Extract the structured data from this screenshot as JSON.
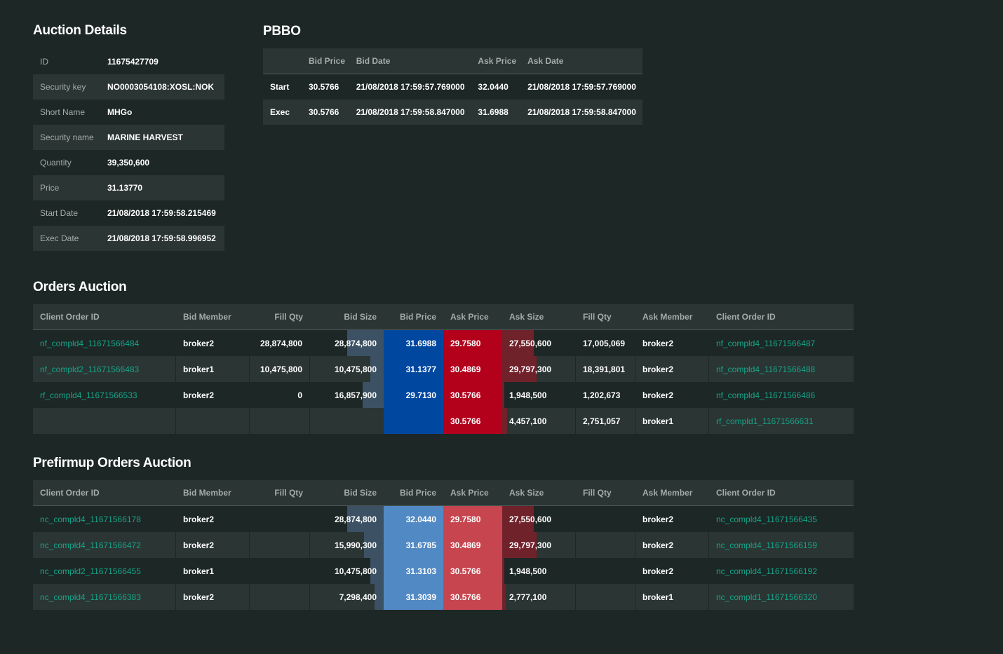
{
  "auction_details": {
    "title": "Auction Details",
    "rows": [
      {
        "label": "ID",
        "value": "11675427709"
      },
      {
        "label": "Security key",
        "value": "NO0003054108:XOSL:NOK"
      },
      {
        "label": "Short Name",
        "value": "MHGo"
      },
      {
        "label": "Security name",
        "value": "MARINE HARVEST"
      },
      {
        "label": "Quantity",
        "value": "39,350,600"
      },
      {
        "label": "Price",
        "value": "31.13770"
      },
      {
        "label": "Start Date",
        "value": "21/08/2018 17:59:58.215469"
      },
      {
        "label": "Exec Date",
        "value": "21/08/2018 17:59:58.996952"
      }
    ]
  },
  "pbbo": {
    "title": "PBBO",
    "headers": [
      "",
      "Bid Price",
      "Bid Date",
      "Ask Price",
      "Ask Date"
    ],
    "rows": [
      [
        "Start",
        "30.5766",
        "21/08/2018 17:59:57.769000",
        "32.0440",
        "21/08/2018 17:59:57.769000"
      ],
      [
        "Exec",
        "30.5766",
        "21/08/2018 17:59:58.847000",
        "31.6988",
        "21/08/2018 17:59:58.847000"
      ]
    ]
  },
  "orders_auction": {
    "title": "Orders Auction",
    "headers": [
      "Client Order ID",
      "Bid Member",
      "Fill Qty",
      "Bid Size",
      "Bid Price",
      "Ask Price",
      "Ask Size",
      "Fill Qty",
      "Ask Member",
      "Client Order ID"
    ],
    "bid_color": "#0047a0",
    "ask_color": "#b3001b",
    "rows": [
      {
        "bid_id": "nf_compld4_11671566484",
        "bid_member": "broker2",
        "bid_fill": "28,874,800",
        "bid_size": "28,874,800",
        "bid_size_frac": 0.5,
        "bid_price": "31.6988",
        "ask_price": "29.7580",
        "ask_size": "27,550,600",
        "ask_size_frac": 0.43,
        "ask_fill": "17,005,069",
        "ask_member": "broker2",
        "ask_id": "nf_compld4_11671566487"
      },
      {
        "bid_id": "nf_compld2_11671566483",
        "bid_member": "broker1",
        "bid_fill": "10,475,800",
        "bid_size": "10,475,800",
        "bid_size_frac": 0.18,
        "bid_price": "31.1377",
        "ask_price": "30.4869",
        "ask_size": "29,797,300",
        "ask_size_frac": 0.47,
        "ask_fill": "18,391,801",
        "ask_member": "broker2",
        "ask_id": "nf_compld4_11671566488"
      },
      {
        "bid_id": "rf_compld4_11671566533",
        "bid_member": "broker2",
        "bid_fill": "0",
        "bid_size": "16,857,900",
        "bid_size_frac": 0.29,
        "bid_price": "29.7130",
        "ask_price": "30.5766",
        "ask_size": "1,948,500",
        "ask_size_frac": 0.03,
        "ask_fill": "1,202,673",
        "ask_member": "broker2",
        "ask_id": "nf_compld4_11671566486"
      },
      {
        "bid_id": "",
        "bid_member": "",
        "bid_fill": "",
        "bid_size": "",
        "bid_size_frac": 0,
        "bid_price": "",
        "ask_price": "30.5766",
        "ask_size": "4,457,100",
        "ask_size_frac": 0.07,
        "ask_fill": "2,751,057",
        "ask_member": "broker1",
        "ask_id": "rf_compld1_11671566631"
      }
    ]
  },
  "prefirmup_orders_auction": {
    "title": "Prefirmup Orders Auction",
    "headers": [
      "Client Order ID",
      "Bid Member",
      "Fill Qty",
      "Bid Size",
      "Bid Price",
      "Ask Price",
      "Ask Size",
      "Fill Qty",
      "Ask Member",
      "Client Order ID"
    ],
    "bid_color": "#5189c4",
    "ask_color": "#c7454f",
    "rows": [
      {
        "bid_id": "nc_compld4_11671566178",
        "bid_member": "broker2",
        "bid_fill": "",
        "bid_size": "28,874,800",
        "bid_size_frac": 0.5,
        "bid_price": "32.0440",
        "ask_price": "29.7580",
        "ask_size": "27,550,600",
        "ask_size_frac": 0.43,
        "ask_fill": "",
        "ask_member": "broker2",
        "ask_id": "nc_compld4_11671566435"
      },
      {
        "bid_id": "nc_compld4_11671566472",
        "bid_member": "broker2",
        "bid_fill": "",
        "bid_size": "15,990,300",
        "bid_size_frac": 0.27,
        "bid_price": "31.6785",
        "ask_price": "30.4869",
        "ask_size": "29,797,300",
        "ask_size_frac": 0.47,
        "ask_fill": "",
        "ask_member": "broker2",
        "ask_id": "nc_compld4_11671566159"
      },
      {
        "bid_id": "nc_compld2_11671566455",
        "bid_member": "broker1",
        "bid_fill": "",
        "bid_size": "10,475,800",
        "bid_size_frac": 0.18,
        "bid_price": "31.3103",
        "ask_price": "30.5766",
        "ask_size": "1,948,500",
        "ask_size_frac": 0.03,
        "ask_fill": "",
        "ask_member": "broker2",
        "ask_id": "nc_compld4_11671566192"
      },
      {
        "bid_id": "nc_compld4_11671566383",
        "bid_member": "broker2",
        "bid_fill": "",
        "bid_size": "7,298,400",
        "bid_size_frac": 0.12,
        "bid_price": "31.3039",
        "ask_price": "30.5766",
        "ask_size": "2,777,100",
        "ask_size_frac": 0.05,
        "ask_fill": "",
        "ask_member": "broker1",
        "ask_id": "nc_compld1_11671566320"
      }
    ]
  }
}
